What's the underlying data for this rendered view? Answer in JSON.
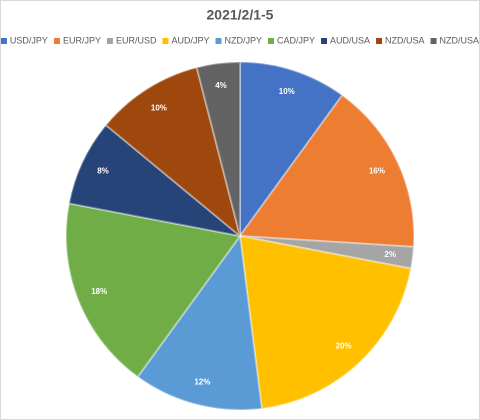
{
  "chart_data": {
    "type": "pie",
    "title": "2021/2/1-5",
    "categories": [
      "USD/JPY",
      "EUR/JPY",
      "EUR/USD",
      "AUD/JPY",
      "NZD/JPY",
      "CAD/JPY",
      "AUD/USA",
      "NZD/USA",
      "NZD/USA"
    ],
    "values": [
      10,
      16,
      2,
      20,
      12,
      18,
      8,
      10,
      4
    ],
    "value_labels": [
      "10%",
      "16%",
      "2%",
      "20%",
      "12%",
      "18%",
      "8%",
      "10%",
      "4%"
    ],
    "colors": [
      "#4472c4",
      "#ed7d31",
      "#a5a5a5",
      "#ffc000",
      "#5b9bd5",
      "#70ad47",
      "#264478",
      "#9e480e",
      "#636363"
    ],
    "legend": "top"
  }
}
